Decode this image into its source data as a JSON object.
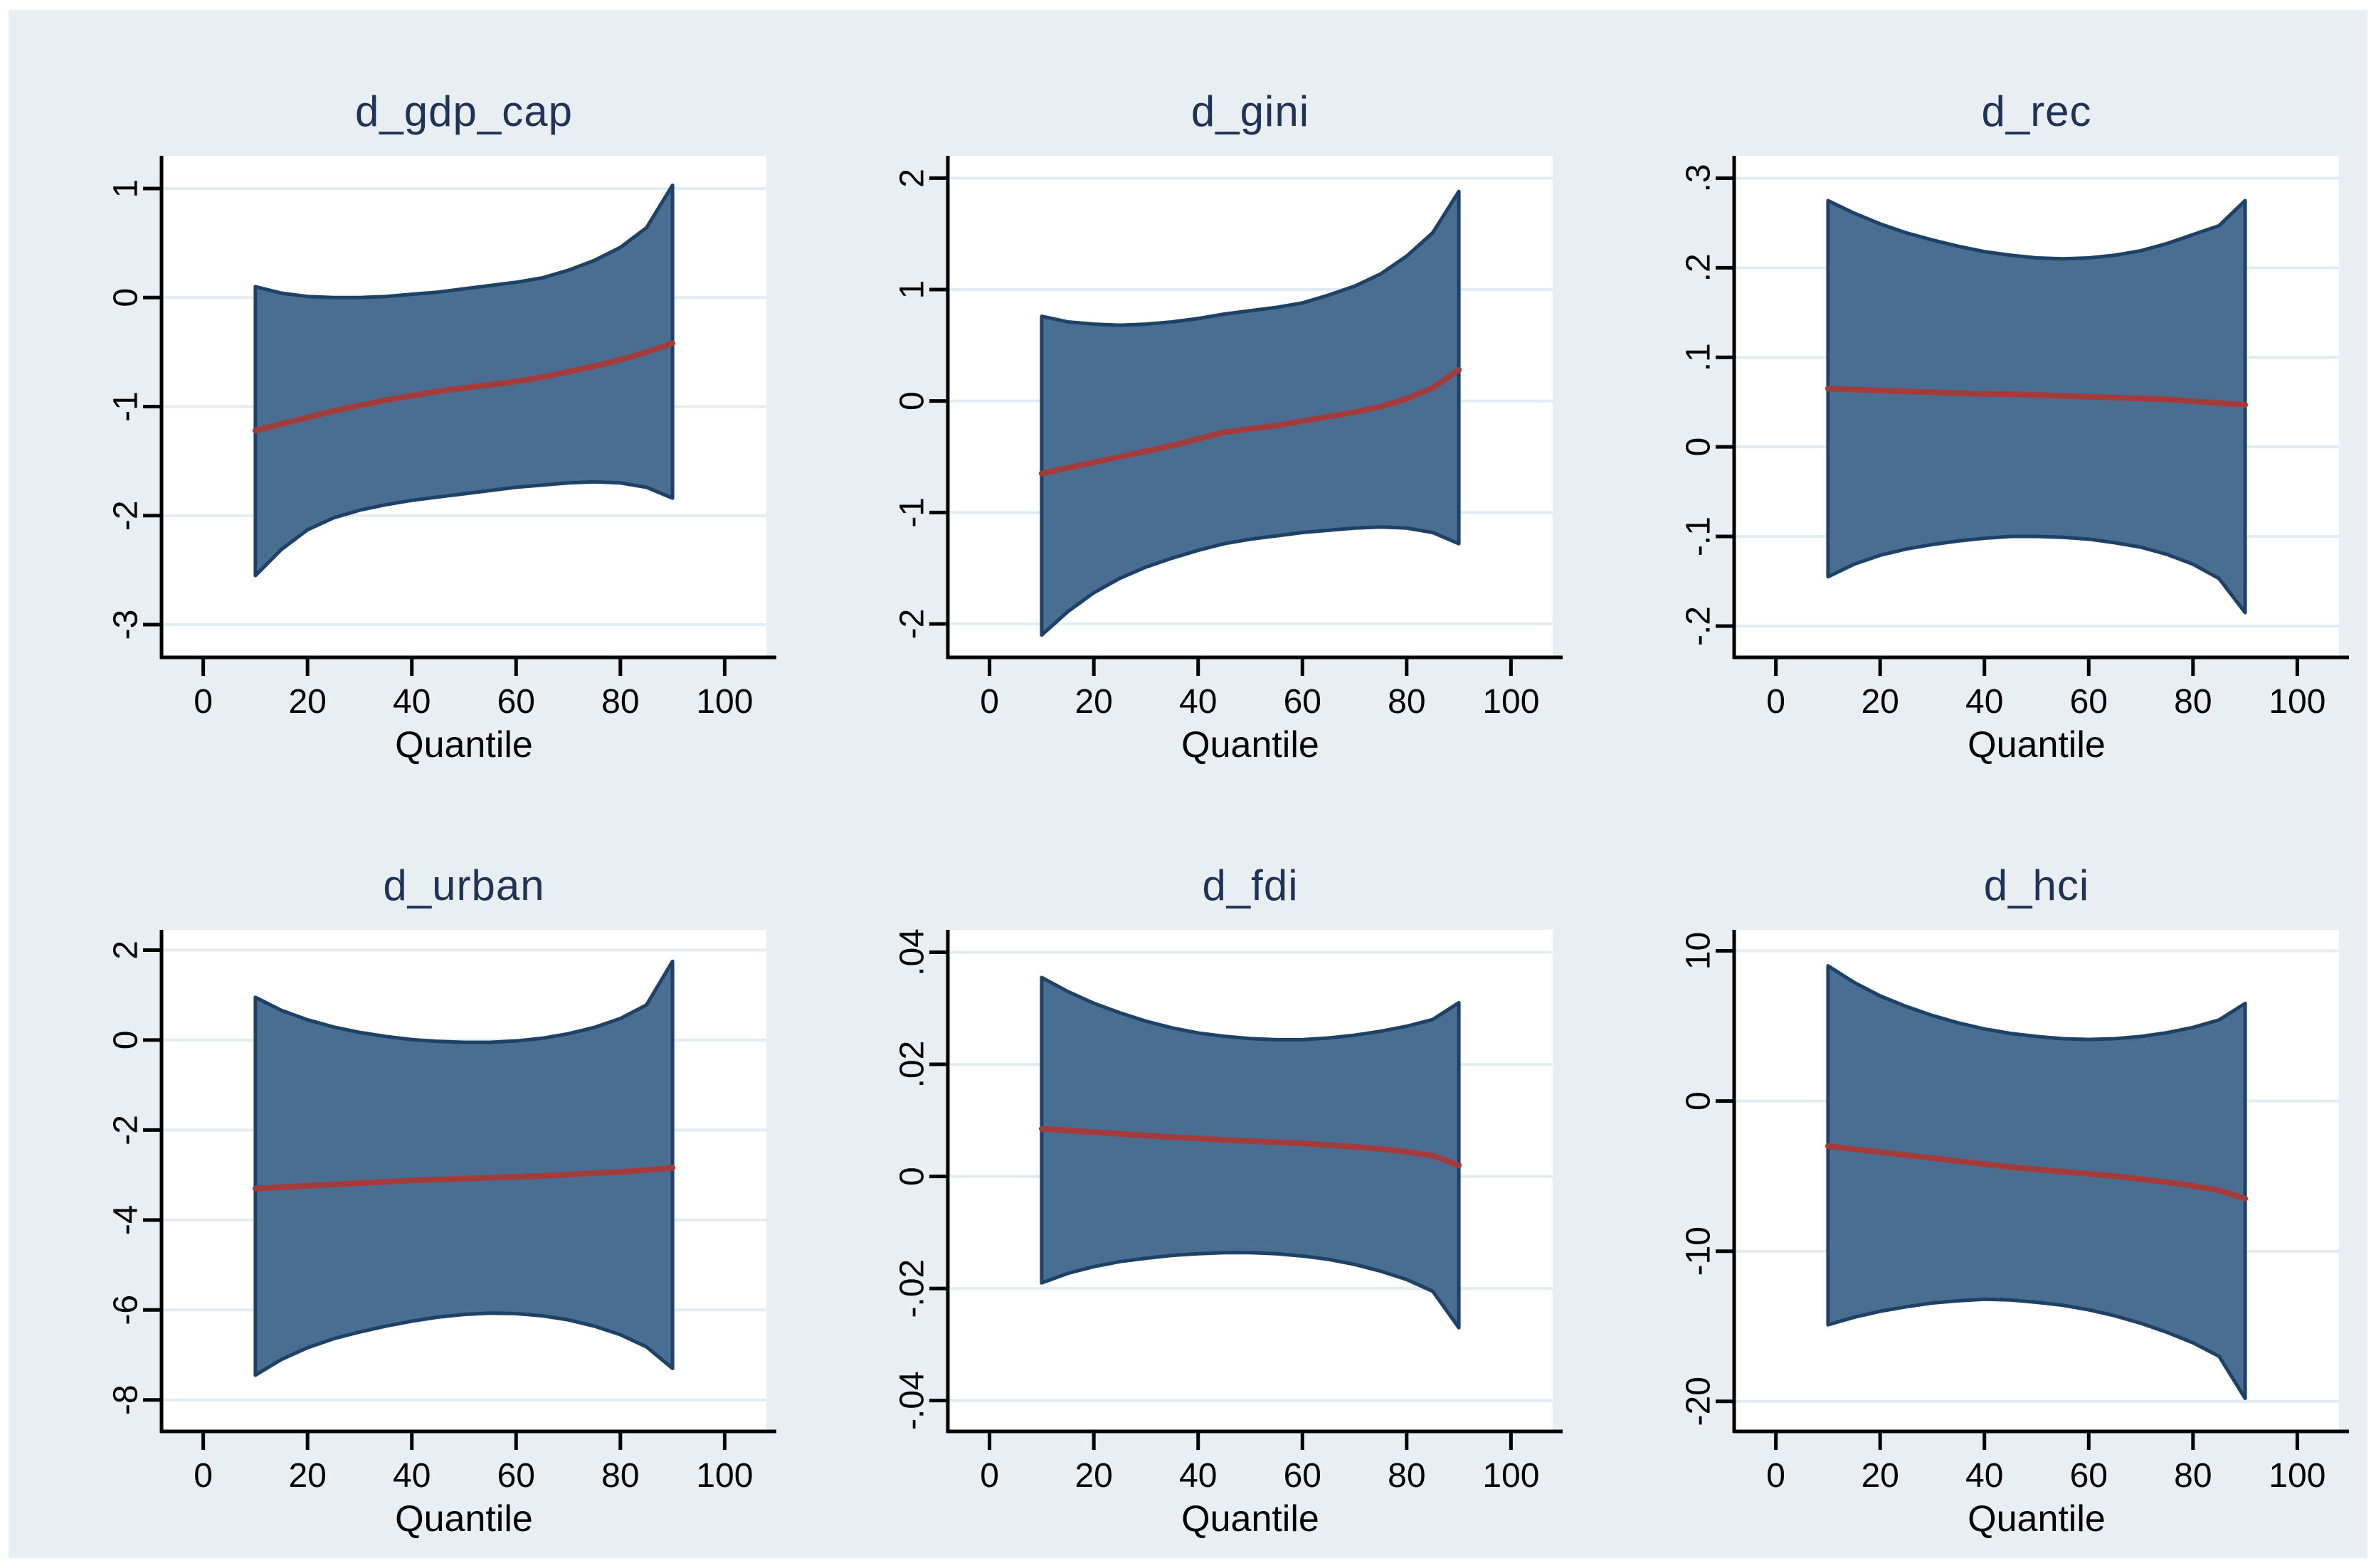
{
  "figure": {
    "background": "#e9eef3",
    "frame_color": "#ffffff",
    "plot_background": "#ffffff",
    "grid_color": "#e2ecf3",
    "axis_color": "#000000",
    "band_fill": "#4a6d92",
    "band_edge": "#1d4266",
    "line_color": "#a43b3b",
    "title_color": "#1f3356",
    "tick_label_color": "#000000",
    "xlabel": "Quantile",
    "xticks": [
      {
        "v": 0,
        "label": "0"
      },
      {
        "v": 20,
        "label": "20"
      },
      {
        "v": 40,
        "label": "40"
      },
      {
        "v": 60,
        "label": "60"
      },
      {
        "v": 80,
        "label": "80"
      },
      {
        "v": 100,
        "label": "100"
      }
    ],
    "xlim": [
      -8,
      108
    ]
  },
  "chart_data": [
    {
      "type": "area",
      "title": "d_gdp_cap",
      "xlabel": "Quantile",
      "legend_position": "none",
      "grid": "horizontal",
      "x": [
        10,
        15,
        20,
        25,
        30,
        35,
        40,
        45,
        50,
        55,
        60,
        65,
        70,
        75,
        80,
        85,
        90
      ],
      "mid": [
        -1.22,
        -1.16,
        -1.1,
        -1.04,
        -0.99,
        -0.94,
        -0.9,
        -0.86,
        -0.83,
        -0.8,
        -0.77,
        -0.73,
        -0.68,
        -0.63,
        -0.57,
        -0.5,
        -0.42
      ],
      "upper": [
        0.1,
        0.04,
        0.01,
        0.0,
        0.0,
        0.01,
        0.03,
        0.05,
        0.08,
        0.11,
        0.14,
        0.18,
        0.25,
        0.34,
        0.46,
        0.64,
        1.03
      ],
      "lower": [
        -2.55,
        -2.31,
        -2.13,
        -2.02,
        -1.95,
        -1.9,
        -1.86,
        -1.83,
        -1.8,
        -1.77,
        -1.74,
        -1.72,
        -1.7,
        -1.69,
        -1.7,
        -1.74,
        -1.84
      ],
      "yticks": [
        {
          "v": 1,
          "label": "1"
        },
        {
          "v": 0,
          "label": "0"
        },
        {
          "v": -1,
          "label": "-1"
        },
        {
          "v": -2,
          "label": "-2"
        },
        {
          "v": -3,
          "label": "-3"
        }
      ],
      "ylim": [
        -3.3,
        1.3
      ]
    },
    {
      "type": "area",
      "title": "d_gini",
      "xlabel": "Quantile",
      "legend_position": "none",
      "grid": "horizontal",
      "x": [
        10,
        15,
        20,
        25,
        30,
        35,
        40,
        45,
        50,
        55,
        60,
        65,
        70,
        75,
        80,
        85,
        90
      ],
      "mid": [
        -0.65,
        -0.6,
        -0.55,
        -0.5,
        -0.45,
        -0.4,
        -0.34,
        -0.28,
        -0.25,
        -0.22,
        -0.18,
        -0.14,
        -0.1,
        -0.05,
        0.02,
        0.12,
        0.28
      ],
      "upper": [
        0.76,
        0.71,
        0.69,
        0.68,
        0.69,
        0.71,
        0.74,
        0.78,
        0.81,
        0.84,
        0.88,
        0.95,
        1.03,
        1.14,
        1.3,
        1.51,
        1.88
      ],
      "lower": [
        -2.1,
        -1.89,
        -1.72,
        -1.59,
        -1.49,
        -1.41,
        -1.34,
        -1.28,
        -1.24,
        -1.21,
        -1.18,
        -1.16,
        -1.14,
        -1.13,
        -1.14,
        -1.18,
        -1.28
      ],
      "yticks": [
        {
          "v": 2,
          "label": "2"
        },
        {
          "v": 1,
          "label": "1"
        },
        {
          "v": 0,
          "label": "0"
        },
        {
          "v": -1,
          "label": "-1"
        },
        {
          "v": -2,
          "label": "-2"
        }
      ],
      "ylim": [
        -2.3,
        2.2
      ]
    },
    {
      "type": "area",
      "title": "d_rec",
      "xlabel": "Quantile",
      "legend_position": "none",
      "grid": "horizontal",
      "x": [
        10,
        15,
        20,
        25,
        30,
        35,
        40,
        45,
        50,
        55,
        60,
        65,
        70,
        75,
        80,
        85,
        90
      ],
      "mid": [
        0.065,
        0.064,
        0.063,
        0.062,
        0.061,
        0.06,
        0.059,
        0.059,
        0.058,
        0.057,
        0.056,
        0.055,
        0.054,
        0.053,
        0.051,
        0.049,
        0.047
      ],
      "upper": [
        0.275,
        0.261,
        0.249,
        0.239,
        0.231,
        0.224,
        0.218,
        0.214,
        0.211,
        0.21,
        0.211,
        0.214,
        0.219,
        0.227,
        0.237,
        0.247,
        0.275
      ],
      "lower": [
        -0.145,
        -0.131,
        -0.121,
        -0.114,
        -0.109,
        -0.105,
        -0.102,
        -0.1,
        -0.1,
        -0.101,
        -0.103,
        -0.107,
        -0.112,
        -0.12,
        -0.131,
        -0.147,
        -0.185
      ],
      "yticks": [
        {
          "v": 0.3,
          "label": ".3"
        },
        {
          "v": 0.2,
          "label": ".2"
        },
        {
          "v": 0.1,
          "label": ".1"
        },
        {
          "v": 0,
          "label": "0"
        },
        {
          "v": -0.1,
          "label": "-.1"
        },
        {
          "v": -0.2,
          "label": "-.2"
        }
      ],
      "ylim": [
        -0.235,
        0.325
      ]
    },
    {
      "type": "area",
      "title": "d_urban",
      "xlabel": "Quantile",
      "legend_position": "none",
      "grid": "horizontal",
      "x": [
        10,
        15,
        20,
        25,
        30,
        35,
        40,
        45,
        50,
        55,
        60,
        65,
        70,
        75,
        80,
        85,
        90
      ],
      "mid": [
        -3.3,
        -3.27,
        -3.24,
        -3.21,
        -3.18,
        -3.15,
        -3.12,
        -3.1,
        -3.08,
        -3.06,
        -3.04,
        -3.02,
        -2.99,
        -2.96,
        -2.93,
        -2.89,
        -2.84
      ],
      "upper": [
        0.95,
        0.66,
        0.45,
        0.29,
        0.17,
        0.08,
        0.01,
        -0.03,
        -0.05,
        -0.05,
        -0.02,
        0.04,
        0.14,
        0.28,
        0.48,
        0.78,
        1.75
      ],
      "lower": [
        -7.45,
        -7.1,
        -6.84,
        -6.64,
        -6.49,
        -6.36,
        -6.25,
        -6.16,
        -6.1,
        -6.07,
        -6.08,
        -6.13,
        -6.22,
        -6.36,
        -6.55,
        -6.82,
        -7.3
      ],
      "yticks": [
        {
          "v": 2,
          "label": "2"
        },
        {
          "v": 0,
          "label": "0"
        },
        {
          "v": -2,
          "label": "-2"
        },
        {
          "v": -4,
          "label": "-4"
        },
        {
          "v": -6,
          "label": "-6"
        },
        {
          "v": -8,
          "label": "-8"
        }
      ],
      "ylim": [
        -8.7,
        2.45
      ]
    },
    {
      "type": "area",
      "title": "d_fdi",
      "xlabel": "Quantile",
      "legend_position": "none",
      "grid": "horizontal",
      "x": [
        10,
        15,
        20,
        25,
        30,
        35,
        40,
        45,
        50,
        55,
        60,
        65,
        70,
        75,
        80,
        85,
        90
      ],
      "mid": [
        0.0085,
        0.0082,
        0.0079,
        0.0076,
        0.0073,
        0.007,
        0.0068,
        0.0065,
        0.0063,
        0.0061,
        0.0059,
        0.0056,
        0.0053,
        0.0049,
        0.0044,
        0.0037,
        0.002
      ],
      "upper": [
        0.0355,
        0.033,
        0.0309,
        0.0292,
        0.0277,
        0.0265,
        0.0256,
        0.025,
        0.0246,
        0.0244,
        0.0244,
        0.0247,
        0.0252,
        0.0259,
        0.0268,
        0.028,
        0.031
      ],
      "lower": [
        -0.019,
        -0.0173,
        -0.0161,
        -0.0152,
        -0.0146,
        -0.0141,
        -0.0138,
        -0.0136,
        -0.0136,
        -0.0138,
        -0.0142,
        -0.0148,
        -0.0157,
        -0.0169,
        -0.0184,
        -0.0205,
        -0.027
      ],
      "yticks": [
        {
          "v": 0.04,
          "label": ".04"
        },
        {
          "v": 0.02,
          "label": ".02"
        },
        {
          "v": 0,
          "label": "0"
        },
        {
          "v": -0.02,
          "label": "-.02"
        },
        {
          "v": -0.04,
          "label": "-.04"
        }
      ],
      "ylim": [
        -0.0455,
        0.044
      ]
    },
    {
      "type": "area",
      "title": "d_hci",
      "xlabel": "Quantile",
      "legend_position": "none",
      "grid": "horizontal",
      "x": [
        10,
        15,
        20,
        25,
        30,
        35,
        40,
        45,
        50,
        55,
        60,
        65,
        70,
        75,
        80,
        85,
        90
      ],
      "mid": [
        -3.0,
        -3.2,
        -3.4,
        -3.6,
        -3.8,
        -4.0,
        -4.2,
        -4.4,
        -4.55,
        -4.7,
        -4.85,
        -5.0,
        -5.2,
        -5.4,
        -5.65,
        -5.95,
        -6.5
      ],
      "upper": [
        9.0,
        7.9,
        7.0,
        6.3,
        5.7,
        5.2,
        4.8,
        4.5,
        4.3,
        4.15,
        4.1,
        4.15,
        4.3,
        4.55,
        4.9,
        5.4,
        6.5
      ],
      "lower": [
        -14.9,
        -14.4,
        -14.0,
        -13.7,
        -13.45,
        -13.3,
        -13.2,
        -13.25,
        -13.4,
        -13.6,
        -13.9,
        -14.3,
        -14.8,
        -15.4,
        -16.1,
        -17.0,
        -19.8
      ],
      "yticks": [
        {
          "v": 10,
          "label": "10"
        },
        {
          "v": 0,
          "label": "0"
        },
        {
          "v": -10,
          "label": "-10"
        },
        {
          "v": -20,
          "label": "-20"
        }
      ],
      "ylim": [
        -22,
        11.4
      ]
    }
  ]
}
